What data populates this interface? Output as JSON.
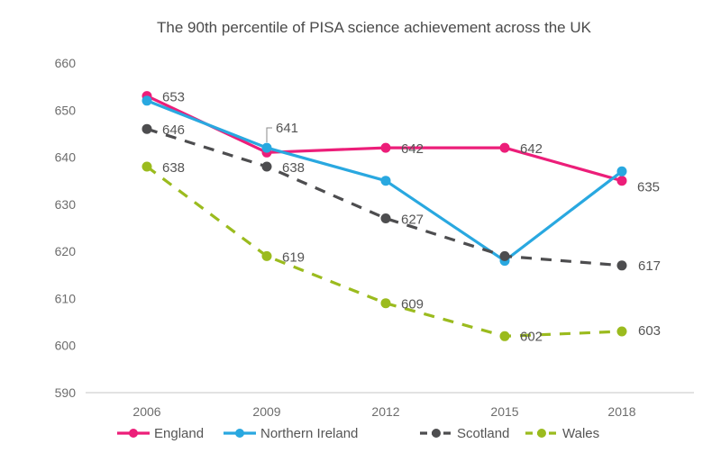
{
  "chart_data": {
    "type": "line",
    "title": "The 90th percentile of PISA science achievement across the UK",
    "xlabel": "",
    "ylabel": "",
    "x": [
      "2006",
      "2009",
      "2012",
      "2015",
      "2018"
    ],
    "ylim": [
      590,
      660
    ],
    "yticks": [
      "590",
      "600",
      "610",
      "620",
      "630",
      "640",
      "650",
      "660"
    ],
    "grid": false,
    "legend_position": "bottom",
    "series": [
      {
        "name": "England",
        "color": "#EC1E79",
        "dashed": false,
        "values": [
          653,
          641,
          642,
          642,
          635
        ],
        "labels": [
          "653",
          "641",
          "642",
          "642",
          "635"
        ]
      },
      {
        "name": "Northern Ireland",
        "color": "#29A8E0",
        "dashed": false,
        "values": [
          652,
          642,
          635,
          618,
          637
        ],
        "labels": [
          "",
          "",
          "",
          "",
          ""
        ]
      },
      {
        "name": "Scotland",
        "color": "#4D4D4F",
        "dashed": true,
        "values": [
          646,
          638,
          627,
          619,
          617
        ],
        "labels": [
          "646",
          "638",
          "627",
          "",
          "617"
        ]
      },
      {
        "name": "Wales",
        "color": "#9BBB1E",
        "dashed": true,
        "values": [
          638,
          619,
          609,
          602,
          603
        ],
        "labels": [
          "638",
          "619",
          "609",
          "602",
          "603"
        ]
      }
    ]
  }
}
